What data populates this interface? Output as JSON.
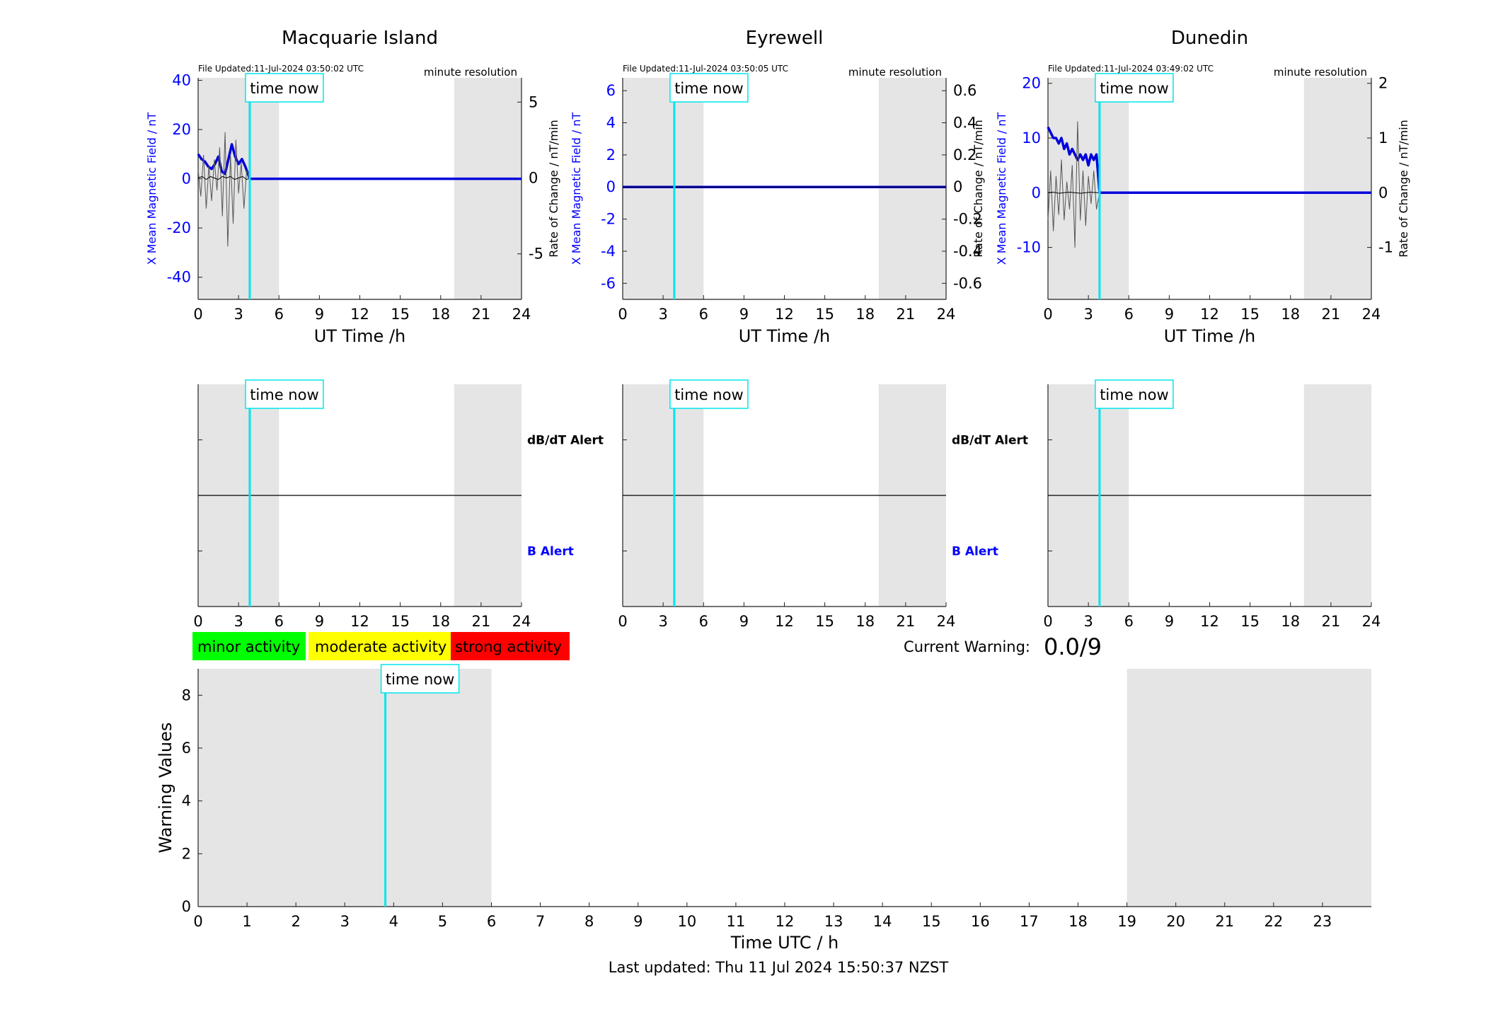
{
  "chart_data": [
    {
      "type": "line",
      "panel": "field",
      "title": "Macquarie Island",
      "file_updated": "File Updated:11-Jul-2024 03:50:02 UTC",
      "resolution": "minute resolution",
      "xlabel": "UT Time /h",
      "ylabel": "X Mean Magnetic Field / nT",
      "ylabel_right": "Rate of Change / nT/min",
      "xlim": [
        0,
        24
      ],
      "ylim": [
        -49,
        41
      ],
      "ylim_right": [
        -8,
        6.6
      ],
      "xticks": [
        0,
        3,
        6,
        9,
        12,
        15,
        18,
        21,
        24
      ],
      "yticks": [
        40,
        20,
        0,
        -20,
        -40
      ],
      "yticks_right": [
        5,
        0,
        -5
      ],
      "shaded_intervals": [
        [
          0,
          6
        ],
        [
          19,
          24
        ]
      ],
      "time_now": 3.83,
      "time_now_label": "time now",
      "series": [
        {
          "color": "#0000dd",
          "x": [
            0,
            0.25,
            0.5,
            0.75,
            1.0,
            1.25,
            1.5,
            1.75,
            2.0,
            2.25,
            2.5,
            2.75,
            3.0,
            3.25,
            3.5,
            3.83,
            4.0,
            24
          ],
          "values": [
            10,
            8,
            7,
            5,
            4,
            6,
            9,
            3,
            2,
            8,
            14,
            9,
            6,
            8,
            5,
            0,
            0,
            0
          ]
        },
        {
          "color": "#555555",
          "x": [
            0,
            0.2,
            0.4,
            0.6,
            0.8,
            1.0,
            1.2,
            1.4,
            1.6,
            1.8,
            2.0,
            2.2,
            2.4,
            2.6,
            2.8,
            3.0,
            3.2,
            3.4,
            3.6,
            3.83
          ],
          "values": [
            0.5,
            -1.2,
            1.5,
            -2.0,
            0.8,
            -1.5,
            1.2,
            -0.8,
            2.0,
            -2.5,
            3.0,
            -4.5,
            1.5,
            -3.0,
            2.5,
            -1.0,
            1.0,
            -2.0,
            0.5,
            0
          ]
        },
        {
          "color": "#000000",
          "x": [
            0,
            0.3,
            0.6,
            0.9,
            1.2,
            1.5,
            1.8,
            2.1,
            2.4,
            2.7,
            3.0,
            3.3,
            3.6,
            3.83
          ],
          "values": [
            0,
            0.1,
            -0.1,
            0.1,
            0,
            -0.1,
            0.1,
            0,
            0.1,
            -0.1,
            0,
            0.1,
            -0.1,
            0
          ]
        }
      ]
    },
    {
      "type": "line",
      "panel": "field",
      "title": "Eyrewell",
      "file_updated": "File Updated:11-Jul-2024 03:50:05 UTC",
      "resolution": "minute resolution",
      "xlabel": "UT Time /h",
      "ylabel": "X Mean Magnetic Field / nT",
      "ylabel_right": "Rate of Change / nT/min",
      "xlim": [
        0,
        24
      ],
      "ylim": [
        -7,
        6.8
      ],
      "ylim_right": [
        -0.7,
        0.68
      ],
      "xticks": [
        0,
        3,
        6,
        9,
        12,
        15,
        18,
        21,
        24
      ],
      "yticks": [
        6,
        4,
        2,
        0,
        -2,
        -4,
        -6
      ],
      "yticks_right": [
        0.6,
        0.4,
        0.2,
        0,
        -0.2,
        -0.4,
        -0.6
      ],
      "shaded_intervals": [
        [
          0,
          6
        ],
        [
          19,
          24
        ]
      ],
      "time_now": 3.83,
      "time_now_label": "time now",
      "series": [
        {
          "color": "#0000dd",
          "x": [
            0,
            24
          ],
          "values": [
            0,
            0
          ]
        },
        {
          "color": "#000000",
          "x": [
            0,
            24
          ],
          "values": [
            0,
            0
          ]
        }
      ]
    },
    {
      "type": "line",
      "panel": "field",
      "title": "Dunedin",
      "file_updated": "File Updated:11-Jul-2024 03:49:02 UTC",
      "resolution": "minute resolution",
      "xlabel": "UT Time /h",
      "ylabel": "X Mean Magnetic Field / nT",
      "ylabel_right": "Rate of Change / nT/min",
      "xlim": [
        0,
        24
      ],
      "ylim": [
        -19.5,
        21
      ],
      "ylim_right": [
        -1.95,
        2.1
      ],
      "xticks": [
        0,
        3,
        6,
        9,
        12,
        15,
        18,
        21,
        24
      ],
      "yticks": [
        20,
        10,
        0,
        -10
      ],
      "yticks_right": [
        2,
        1,
        0,
        -1
      ],
      "shaded_intervals": [
        [
          0,
          6
        ],
        [
          19,
          24
        ]
      ],
      "time_now": 3.83,
      "time_now_label": "time now",
      "series": [
        {
          "color": "#0000dd",
          "x": [
            0,
            0.2,
            0.4,
            0.6,
            0.8,
            1.0,
            1.2,
            1.4,
            1.6,
            1.8,
            2.0,
            2.2,
            2.4,
            2.6,
            2.8,
            3.0,
            3.2,
            3.4,
            3.6,
            3.83,
            4.0,
            24
          ],
          "values": [
            12,
            11,
            10,
            10,
            9,
            10,
            8,
            9,
            7,
            8,
            7,
            6,
            7,
            6,
            7,
            5,
            7,
            6,
            7,
            0,
            0,
            0
          ]
        },
        {
          "color": "#555555",
          "x": [
            0,
            0.2,
            0.4,
            0.6,
            0.8,
            1.0,
            1.2,
            1.4,
            1.6,
            1.8,
            2.0,
            2.2,
            2.4,
            2.6,
            2.8,
            3.0,
            3.2,
            3.4,
            3.6,
            3.83
          ],
          "values": [
            -0.5,
            0.4,
            -0.7,
            0.3,
            -0.4,
            0.6,
            -0.5,
            0.2,
            -0.3,
            0.5,
            -1.0,
            1.3,
            -0.5,
            0.4,
            -0.6,
            0.3,
            -0.2,
            0.4,
            -0.3,
            0
          ]
        },
        {
          "color": "#000000",
          "x": [
            0,
            0.4,
            0.8,
            1.2,
            1.6,
            2.0,
            2.4,
            2.8,
            3.2,
            3.6,
            3.83
          ],
          "values": [
            0,
            0.01,
            -0.01,
            0,
            0.01,
            0,
            -0.01,
            0,
            0.01,
            0,
            0
          ]
        }
      ]
    },
    {
      "type": "line",
      "panel": "alert",
      "xlim": [
        0,
        24
      ],
      "xticks": [
        0,
        3,
        6,
        9,
        12,
        15,
        18,
        21,
        24
      ],
      "upper_label": "dB/dT Alert",
      "lower_label": "B Alert",
      "shaded_intervals": [
        [
          0,
          6
        ],
        [
          19,
          24
        ]
      ],
      "time_now": 3.83,
      "time_now_label": "time now"
    },
    {
      "type": "line",
      "panel": "alert",
      "xlim": [
        0,
        24
      ],
      "xticks": [
        0,
        3,
        6,
        9,
        12,
        15,
        18,
        21,
        24
      ],
      "upper_label": "dB/dT Alert",
      "lower_label": "B Alert",
      "shaded_intervals": [
        [
          0,
          6
        ],
        [
          19,
          24
        ]
      ],
      "time_now": 3.83,
      "time_now_label": "time now"
    },
    {
      "type": "line",
      "panel": "alert",
      "xlim": [
        0,
        24
      ],
      "xticks": [
        0,
        3,
        6,
        9,
        12,
        15,
        18,
        21,
        24
      ],
      "shaded_intervals": [
        [
          0,
          6
        ],
        [
          19,
          24
        ]
      ],
      "time_now": 3.83,
      "time_now_label": "time now"
    },
    {
      "type": "bar",
      "panel": "warning",
      "xlabel": "Time UTC / h",
      "ylabel": "Warning Values",
      "xlim": [
        0,
        24
      ],
      "ylim": [
        0,
        9
      ],
      "xticks": [
        0,
        1,
        2,
        3,
        4,
        5,
        6,
        7,
        8,
        9,
        10,
        11,
        12,
        13,
        14,
        15,
        16,
        17,
        18,
        19,
        20,
        21,
        22,
        23
      ],
      "yticks": [
        0,
        2,
        4,
        6,
        8
      ],
      "shaded_intervals": [
        [
          0,
          6
        ],
        [
          19,
          24
        ]
      ],
      "time_now": 3.83,
      "time_now_label": "time now",
      "values": []
    }
  ],
  "legend": [
    {
      "label": "minor activity",
      "color": "#00ff00"
    },
    {
      "label": "moderate activity",
      "color": "#ffff00"
    },
    {
      "label": "strong activity",
      "color": "#ff0000"
    }
  ],
  "current_warning": {
    "label": "Current Warning:",
    "value": "0.0/9"
  },
  "last_updated": "Last updated: Thu 11 Jul 2024 15:50:37 NZST"
}
